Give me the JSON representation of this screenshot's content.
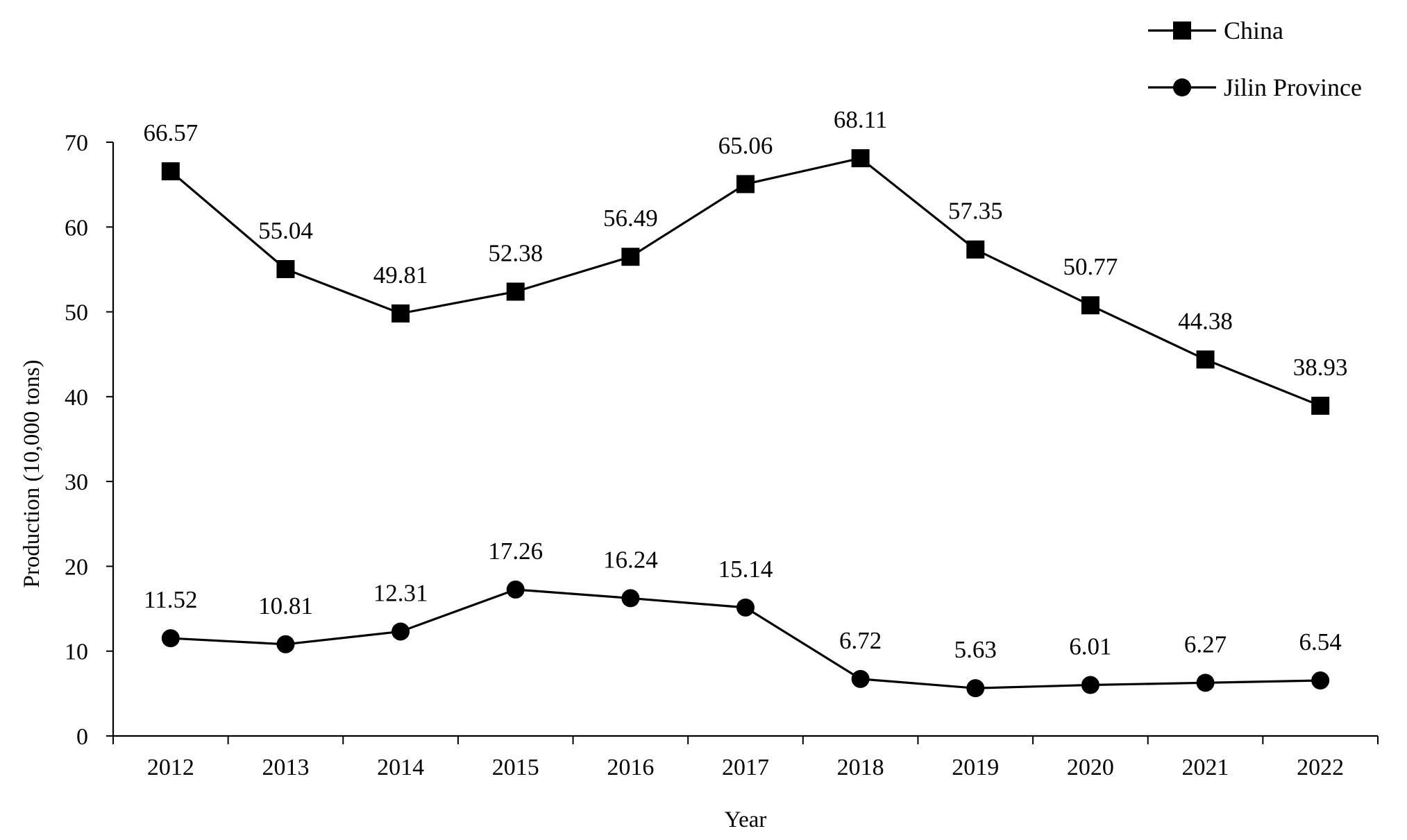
{
  "chart_data": {
    "type": "line",
    "title": "",
    "xlabel": "Year",
    "ylabel": "Production (10,000 tons)",
    "ylim": [
      0,
      70
    ],
    "yticks": [
      0,
      10,
      20,
      30,
      40,
      50,
      60,
      70
    ],
    "categories": [
      "2012",
      "2013",
      "2014",
      "2015",
      "2016",
      "2017",
      "2018",
      "2019",
      "2020",
      "2021",
      "2022"
    ],
    "legend_position": "top-right",
    "grid": false,
    "series": [
      {
        "name": "China",
        "marker": "square",
        "values": [
          66.57,
          55.04,
          49.81,
          52.38,
          56.49,
          65.06,
          68.11,
          57.35,
          50.77,
          44.38,
          38.93
        ],
        "labels": [
          "66.57",
          "55.04",
          "49.81",
          "52.38",
          "56.49",
          "65.06",
          "68.11",
          "57.35",
          "50.77",
          "44.38",
          "38.93"
        ]
      },
      {
        "name": "Jilin Province",
        "marker": "circle",
        "values": [
          11.52,
          10.81,
          12.31,
          17.26,
          16.24,
          15.14,
          6.72,
          5.63,
          6.01,
          6.27,
          6.54
        ],
        "labels": [
          "11.52",
          "10.81",
          "12.31",
          "17.26",
          "16.24",
          "15.14",
          "6.72",
          "5.63",
          "6.01",
          "6.27",
          "6.54"
        ]
      }
    ],
    "colors": {
      "line": "#000000",
      "marker": "#000000",
      "axis": "#000000"
    }
  }
}
